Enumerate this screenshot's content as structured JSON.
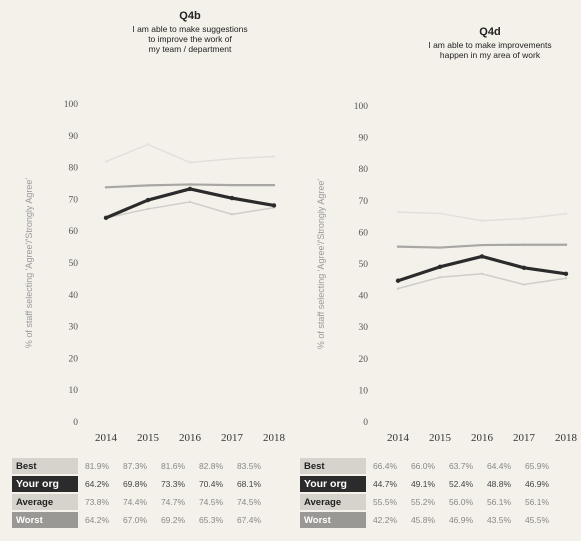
{
  "chart_data": [
    {
      "type": "line",
      "id": "Q4b",
      "title": "I am able to make suggestions to improve the work of my team / department",
      "title_lines": [
        "I am able to make suggestions",
        "to improve the work of",
        "my team / department"
      ],
      "ylabel": "% of staff selecting 'Agree'/'Strongly Agree'",
      "ylim": [
        0,
        100
      ],
      "yticks": [
        "0",
        "10",
        "20",
        "30",
        "40",
        "50",
        "60",
        "70",
        "80",
        "90",
        "100"
      ],
      "categories": [
        "2014",
        "2015",
        "2016",
        "2017",
        "2018"
      ],
      "series": [
        {
          "name": "Best",
          "values": [
            81.9,
            87.3,
            81.6,
            82.8,
            83.5
          ],
          "labels": [
            "81.9%",
            "87.3%",
            "81.6%",
            "82.8%",
            "83.5%"
          ]
        },
        {
          "name": "Your org",
          "values": [
            64.2,
            69.8,
            73.3,
            70.4,
            68.1
          ],
          "labels": [
            "64.2%",
            "69.8%",
            "73.3%",
            "70.4%",
            "68.1%"
          ]
        },
        {
          "name": "Average",
          "values": [
            73.8,
            74.4,
            74.7,
            74.5,
            74.5
          ],
          "labels": [
            "73.8%",
            "74.4%",
            "74.7%",
            "74.5%",
            "74.5%"
          ]
        },
        {
          "name": "Worst",
          "values": [
            64.2,
            67.0,
            69.2,
            65.3,
            67.4
          ],
          "labels": [
            "64.2%",
            "67.0%",
            "69.2%",
            "65.3%",
            "67.4%"
          ]
        }
      ]
    },
    {
      "type": "line",
      "id": "Q4d",
      "title": "I am able to make improvements happen in my area of work",
      "title_lines": [
        "I am able to make improvements",
        "happen in my area of work"
      ],
      "ylabel": "% of staff selecting 'Agree'/'Strongly Agree'",
      "ylim": [
        0,
        100
      ],
      "yticks": [
        "0",
        "10",
        "20",
        "30",
        "40",
        "50",
        "60",
        "70",
        "80",
        "90",
        "100"
      ],
      "categories": [
        "2014",
        "2015",
        "2016",
        "2017",
        "2018"
      ],
      "series": [
        {
          "name": "Best",
          "values": [
            66.4,
            66.0,
            63.7,
            64.4,
            65.9
          ],
          "labels": [
            "66.4%",
            "66.0%",
            "63.7%",
            "64.4%",
            "65.9%"
          ]
        },
        {
          "name": "Your org",
          "values": [
            44.7,
            49.1,
            52.4,
            48.8,
            46.9
          ],
          "labels": [
            "44.7%",
            "49.1%",
            "52.4%",
            "48.8%",
            "46.9%"
          ]
        },
        {
          "name": "Average",
          "values": [
            55.5,
            55.2,
            56.0,
            56.1,
            56.1
          ],
          "labels": [
            "55.5%",
            "55.2%",
            "56.0%",
            "56.1%",
            "56.1%"
          ]
        },
        {
          "name": "Worst",
          "values": [
            42.2,
            45.8,
            46.9,
            43.5,
            45.5
          ],
          "labels": [
            "42.2%",
            "45.8%",
            "46.9%",
            "43.5%",
            "45.5%"
          ]
        }
      ]
    }
  ],
  "colors": {
    "best": "#e2e0dc",
    "yourorg": "#2b2b2b",
    "average": "#a9a7a3",
    "worst": "#cfcdc8"
  }
}
